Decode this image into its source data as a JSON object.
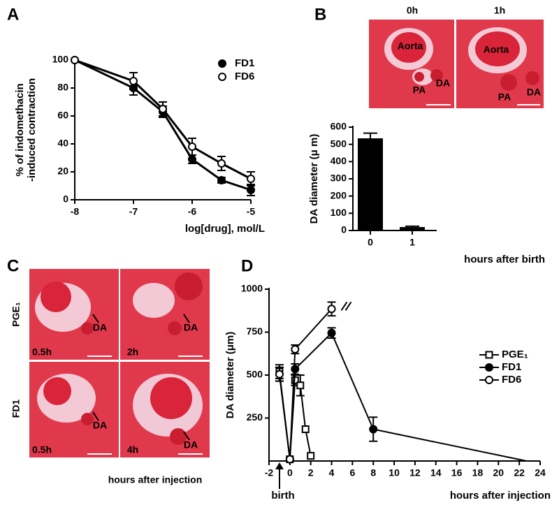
{
  "panels": {
    "A": "A",
    "B": "B",
    "C": "C",
    "D": "D"
  },
  "images": {
    "B": {
      "times": [
        "0h",
        "1h"
      ],
      "labels": [
        [
          "Aorta",
          "PA",
          "DA"
        ],
        [
          "Aorta",
          "PA",
          "DA"
        ]
      ]
    },
    "C": {
      "rows": [
        "PGE₁",
        "FD1"
      ],
      "times": [
        [
          "0.5h",
          "2h"
        ],
        [
          "0.5h",
          "4h"
        ]
      ],
      "marker": "DA",
      "xlabel": "hours after injection"
    }
  },
  "chart_data": [
    {
      "type": "line",
      "ylabel": [
        "% of indomethacin",
        "-induced contraction"
      ],
      "xlabel": "log[drug], mol/L",
      "xlim": [
        -8,
        -5
      ],
      "xticks": [
        -8,
        -7,
        -6,
        -5
      ],
      "ylim": [
        0,
        100
      ],
      "yticks": [
        0,
        20,
        40,
        60,
        80,
        100
      ],
      "legend": "upper right",
      "series": [
        {
          "name": "FD1",
          "color": "#000",
          "marker": "circle",
          "x": [
            -8,
            -7,
            -6.5,
            -6,
            -5.5,
            -5
          ],
          "values": [
            100,
            80,
            63,
            29,
            14,
            7
          ],
          "errors": [
            0,
            5,
            4,
            3,
            2,
            4
          ]
        },
        {
          "name": "FD6",
          "color": "#000",
          "marker": "open-circle",
          "x": [
            -8,
            -7,
            -6.5,
            -6,
            -5.5,
            -5
          ],
          "values": [
            100,
            85,
            65,
            38,
            26,
            15
          ],
          "errors": [
            0,
            6,
            5,
            6,
            5,
            5
          ]
        }
      ]
    },
    {
      "type": "bar",
      "ylabel": "DA diameter (μ m)",
      "xlabel": "hours after birth",
      "categories": [
        "0",
        "1"
      ],
      "values": [
        535,
        20
      ],
      "errors": [
        30,
        5
      ],
      "color": "#000",
      "ylim": [
        0,
        600
      ],
      "yticks": [
        0,
        100,
        200,
        300,
        400,
        500,
        600
      ]
    },
    {
      "type": "line",
      "ylabel": "DA diameter (μm)",
      "xlabel": "hours after injection",
      "annotation": "birth",
      "xlim": [
        -2,
        24
      ],
      "xticks": [
        -2,
        0,
        2,
        4,
        6,
        8,
        10,
        12,
        14,
        16,
        18,
        20,
        22,
        24
      ],
      "ylim": [
        0,
        1000
      ],
      "yticks": [
        250,
        500,
        750,
        1000
      ],
      "legend": "right",
      "series": [
        {
          "name": "PGE₁",
          "color": "#000",
          "marker": "open-square",
          "x": [
            -1,
            0,
            0.5,
            1,
            1.5,
            2
          ],
          "values": [
            520,
            10,
            470,
            440,
            185,
            30
          ],
          "errors": [
            40,
            0,
            30,
            60,
            0,
            0
          ]
        },
        {
          "name": "FD1",
          "color": "#000",
          "marker": "circle",
          "x": [
            -1,
            0,
            0.5,
            4,
            8,
            22.7
          ],
          "values": [
            505,
            10,
            535,
            745,
            185,
            0
          ],
          "errors": [
            40,
            0,
            30,
            30,
            70,
            0
          ]
        },
        {
          "name": "FD6",
          "color": "#000",
          "marker": "open-circle",
          "x": [
            -1,
            0,
            0.5,
            4
          ],
          "values": [
            505,
            10,
            650,
            885
          ],
          "errors": [
            40,
            0,
            25,
            40
          ]
        }
      ]
    }
  ]
}
